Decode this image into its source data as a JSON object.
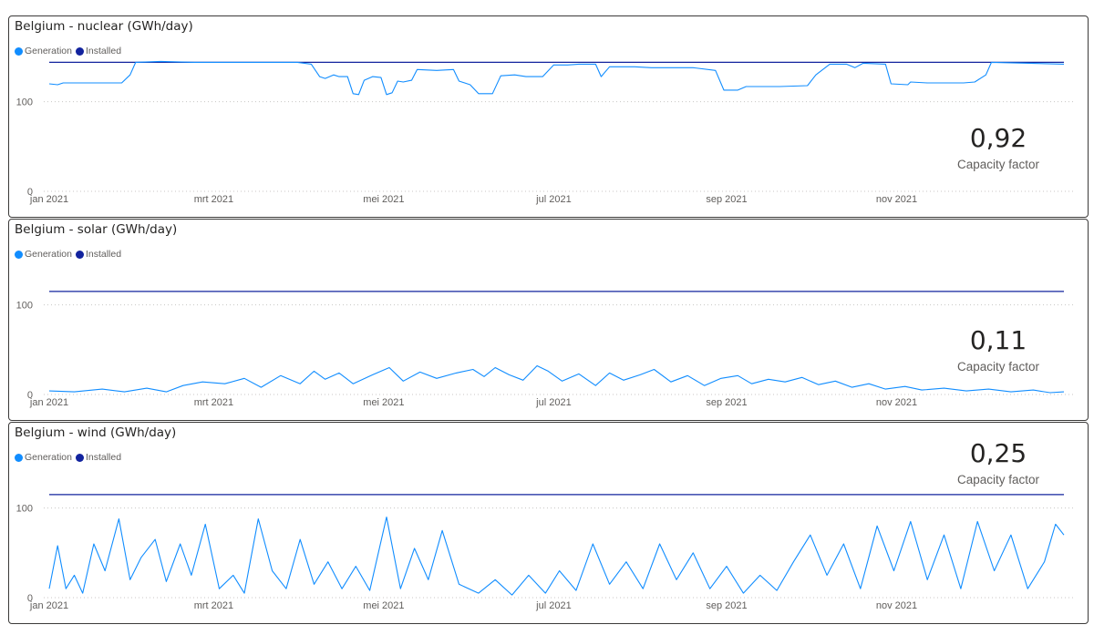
{
  "panels": [
    {
      "title": "Belgium - nuclear (GWh/day)",
      "legend": [
        "Generation",
        "Installed"
      ],
      "kpi_value": "0,92",
      "kpi_label": "Capacity factor"
    },
    {
      "title": "Belgium - solar (GWh/day)",
      "legend": [
        "Generation",
        "Installed"
      ],
      "kpi_value": "0,11",
      "kpi_label": "Capacity factor"
    },
    {
      "title": "Belgium - wind (GWh/day)",
      "legend": [
        "Generation",
        "Installed"
      ],
      "kpi_value": "0,25",
      "kpi_label": "Capacity factor"
    }
  ],
  "colors": {
    "generation": "#118dff",
    "installed": "#12239e",
    "grid": "#c8c6c4",
    "border": "#3b3a39"
  },
  "chart_data": [
    {
      "type": "line",
      "title": "Belgium - nuclear (GWh/day)",
      "x_ticks": [
        "jan 2021",
        "mrt 2021",
        "mei 2021",
        "jul 2021",
        "sep 2021",
        "nov 2021"
      ],
      "y_ticks": [
        "0",
        "100"
      ],
      "ylim": [
        0,
        180
      ],
      "x_range": [
        "2021-01-01",
        "2021-12-31"
      ],
      "grid": true,
      "legend_position": "top-left",
      "series": [
        {
          "name": "Installed",
          "points": [
            [
              "2021-01-01",
              144
            ],
            [
              "2021-12-31",
              144
            ]
          ]
        },
        {
          "name": "Generation",
          "points": [
            [
              "2021-01-01",
              120
            ],
            [
              "2021-01-04",
              119
            ],
            [
              "2021-01-06",
              121
            ],
            [
              "2021-01-27",
              121
            ],
            [
              "2021-01-30",
              130
            ],
            [
              "2021-02-01",
              144
            ],
            [
              "2021-02-10",
              145
            ],
            [
              "2021-02-22",
              144
            ],
            [
              "2021-03-10",
              144
            ],
            [
              "2021-03-31",
              144
            ],
            [
              "2021-04-05",
              142
            ],
            [
              "2021-04-08",
              128
            ],
            [
              "2021-04-10",
              126
            ],
            [
              "2021-04-13",
              130
            ],
            [
              "2021-04-15",
              128
            ],
            [
              "2021-04-18",
              128
            ],
            [
              "2021-04-20",
              109
            ],
            [
              "2021-04-22",
              108
            ],
            [
              "2021-04-24",
              124
            ],
            [
              "2021-04-27",
              128
            ],
            [
              "2021-04-30",
              127
            ],
            [
              "2021-05-02",
              108
            ],
            [
              "2021-05-04",
              110
            ],
            [
              "2021-05-06",
              123
            ],
            [
              "2021-05-08",
              122
            ],
            [
              "2021-05-11",
              124
            ],
            [
              "2021-05-13",
              136
            ],
            [
              "2021-05-20",
              135
            ],
            [
              "2021-05-26",
              136
            ],
            [
              "2021-05-28",
              123
            ],
            [
              "2021-06-01",
              119
            ],
            [
              "2021-06-04",
              109
            ],
            [
              "2021-06-09",
              109
            ],
            [
              "2021-06-12",
              129
            ],
            [
              "2021-06-17",
              130
            ],
            [
              "2021-06-21",
              128
            ],
            [
              "2021-06-27",
              128
            ],
            [
              "2021-07-01",
              141
            ],
            [
              "2021-07-06",
              141
            ],
            [
              "2021-07-10",
              142
            ],
            [
              "2021-07-16",
              142
            ],
            [
              "2021-07-18",
              128
            ],
            [
              "2021-07-21",
              139
            ],
            [
              "2021-07-30",
              139
            ],
            [
              "2021-08-05",
              138
            ],
            [
              "2021-08-15",
              138
            ],
            [
              "2021-08-20",
              138
            ],
            [
              "2021-08-28",
              135
            ],
            [
              "2021-08-31",
              113
            ],
            [
              "2021-09-05",
              113
            ],
            [
              "2021-09-08",
              117
            ],
            [
              "2021-09-20",
              117
            ],
            [
              "2021-09-30",
              118
            ],
            [
              "2021-10-03",
              130
            ],
            [
              "2021-10-08",
              142
            ],
            [
              "2021-10-14",
              142
            ],
            [
              "2021-10-17",
              138
            ],
            [
              "2021-10-20",
              143
            ],
            [
              "2021-10-28",
              142
            ],
            [
              "2021-10-30",
              120
            ],
            [
              "2021-11-05",
              119
            ],
            [
              "2021-11-06",
              122
            ],
            [
              "2021-11-12",
              121
            ],
            [
              "2021-11-25",
              121
            ],
            [
              "2021-11-29",
              122
            ],
            [
              "2021-12-03",
              130
            ],
            [
              "2021-12-05",
              144
            ],
            [
              "2021-12-31",
              142
            ]
          ]
        }
      ]
    },
    {
      "type": "line",
      "title": "Belgium - solar (GWh/day)",
      "x_ticks": [
        "jan 2021",
        "mrt 2021",
        "mei 2021",
        "jul 2021",
        "sep 2021",
        "nov 2021"
      ],
      "y_ticks": [
        "0",
        "100"
      ],
      "ylim": [
        0,
        180
      ],
      "x_range": [
        "2021-01-01",
        "2021-12-31"
      ],
      "grid": true,
      "legend_position": "top-left",
      "series": [
        {
          "name": "Installed",
          "points": [
            [
              "2021-01-01",
              115
            ],
            [
              "2021-12-31",
              115
            ]
          ]
        },
        {
          "name": "Generation",
          "points": [
            [
              "2021-01-01",
              4
            ],
            [
              "2021-01-10",
              3
            ],
            [
              "2021-01-20",
              6
            ],
            [
              "2021-01-28",
              3
            ],
            [
              "2021-02-05",
              7
            ],
            [
              "2021-02-12",
              3
            ],
            [
              "2021-02-18",
              10
            ],
            [
              "2021-02-25",
              14
            ],
            [
              "2021-03-05",
              12
            ],
            [
              "2021-03-12",
              18
            ],
            [
              "2021-03-18",
              8
            ],
            [
              "2021-03-25",
              21
            ],
            [
              "2021-04-01",
              12
            ],
            [
              "2021-04-06",
              26
            ],
            [
              "2021-04-10",
              17
            ],
            [
              "2021-04-15",
              24
            ],
            [
              "2021-04-20",
              12
            ],
            [
              "2021-04-27",
              22
            ],
            [
              "2021-05-03",
              30
            ],
            [
              "2021-05-08",
              15
            ],
            [
              "2021-05-14",
              25
            ],
            [
              "2021-05-20",
              18
            ],
            [
              "2021-05-27",
              24
            ],
            [
              "2021-06-02",
              28
            ],
            [
              "2021-06-06",
              20
            ],
            [
              "2021-06-10",
              30
            ],
            [
              "2021-06-15",
              22
            ],
            [
              "2021-06-20",
              16
            ],
            [
              "2021-06-25",
              32
            ],
            [
              "2021-06-29",
              26
            ],
            [
              "2021-07-04",
              15
            ],
            [
              "2021-07-10",
              23
            ],
            [
              "2021-07-16",
              10
            ],
            [
              "2021-07-21",
              24
            ],
            [
              "2021-07-26",
              16
            ],
            [
              "2021-08-01",
              22
            ],
            [
              "2021-08-06",
              28
            ],
            [
              "2021-08-12",
              14
            ],
            [
              "2021-08-18",
              21
            ],
            [
              "2021-08-24",
              10
            ],
            [
              "2021-08-30",
              18
            ],
            [
              "2021-09-05",
              21
            ],
            [
              "2021-09-10",
              12
            ],
            [
              "2021-09-16",
              17
            ],
            [
              "2021-09-22",
              14
            ],
            [
              "2021-09-28",
              19
            ],
            [
              "2021-10-04",
              11
            ],
            [
              "2021-10-10",
              15
            ],
            [
              "2021-10-16",
              8
            ],
            [
              "2021-10-22",
              12
            ],
            [
              "2021-10-28",
              6
            ],
            [
              "2021-11-04",
              9
            ],
            [
              "2021-11-10",
              5
            ],
            [
              "2021-11-18",
              7
            ],
            [
              "2021-11-26",
              4
            ],
            [
              "2021-12-04",
              6
            ],
            [
              "2021-12-12",
              3
            ],
            [
              "2021-12-20",
              5
            ],
            [
              "2021-12-26",
              2
            ],
            [
              "2021-12-31",
              3
            ]
          ]
        }
      ]
    },
    {
      "type": "line",
      "title": "Belgium - wind (GWh/day)",
      "x_ticks": [
        "jan 2021",
        "mrt 2021",
        "mei 2021",
        "jul 2021",
        "sep 2021",
        "nov 2021"
      ],
      "y_ticks": [
        "0",
        "100"
      ],
      "ylim": [
        0,
        180
      ],
      "x_range": [
        "2021-01-01",
        "2021-12-31"
      ],
      "grid": true,
      "legend_position": "top-left",
      "series": [
        {
          "name": "Installed",
          "points": [
            [
              "2021-01-01",
              115
            ],
            [
              "2021-12-31",
              115
            ]
          ]
        },
        {
          "name": "Generation",
          "points": [
            [
              "2021-01-01",
              10
            ],
            [
              "2021-01-04",
              58
            ],
            [
              "2021-01-07",
              10
            ],
            [
              "2021-01-10",
              25
            ],
            [
              "2021-01-13",
              5
            ],
            [
              "2021-01-17",
              60
            ],
            [
              "2021-01-21",
              30
            ],
            [
              "2021-01-26",
              88
            ],
            [
              "2021-01-30",
              20
            ],
            [
              "2021-02-03",
              45
            ],
            [
              "2021-02-08",
              65
            ],
            [
              "2021-02-12",
              18
            ],
            [
              "2021-02-17",
              60
            ],
            [
              "2021-02-21",
              25
            ],
            [
              "2021-02-26",
              82
            ],
            [
              "2021-03-03",
              10
            ],
            [
              "2021-03-08",
              25
            ],
            [
              "2021-03-12",
              5
            ],
            [
              "2021-03-17",
              88
            ],
            [
              "2021-03-22",
              30
            ],
            [
              "2021-03-27",
              10
            ],
            [
              "2021-04-01",
              65
            ],
            [
              "2021-04-06",
              15
            ],
            [
              "2021-04-11",
              40
            ],
            [
              "2021-04-16",
              10
            ],
            [
              "2021-04-21",
              35
            ],
            [
              "2021-04-26",
              8
            ],
            [
              "2021-05-02",
              90
            ],
            [
              "2021-05-07",
              10
            ],
            [
              "2021-05-12",
              55
            ],
            [
              "2021-05-17",
              20
            ],
            [
              "2021-05-22",
              75
            ],
            [
              "2021-05-28",
              15
            ],
            [
              "2021-06-04",
              5
            ],
            [
              "2021-06-10",
              20
            ],
            [
              "2021-06-16",
              3
            ],
            [
              "2021-06-22",
              25
            ],
            [
              "2021-06-28",
              5
            ],
            [
              "2021-07-03",
              30
            ],
            [
              "2021-07-09",
              8
            ],
            [
              "2021-07-15",
              60
            ],
            [
              "2021-07-21",
              15
            ],
            [
              "2021-07-27",
              40
            ],
            [
              "2021-08-02",
              10
            ],
            [
              "2021-08-08",
              60
            ],
            [
              "2021-08-14",
              20
            ],
            [
              "2021-08-20",
              50
            ],
            [
              "2021-08-26",
              10
            ],
            [
              "2021-09-01",
              35
            ],
            [
              "2021-09-07",
              5
            ],
            [
              "2021-09-13",
              25
            ],
            [
              "2021-09-19",
              8
            ],
            [
              "2021-09-25",
              40
            ],
            [
              "2021-10-01",
              70
            ],
            [
              "2021-10-07",
              25
            ],
            [
              "2021-10-13",
              60
            ],
            [
              "2021-10-19",
              10
            ],
            [
              "2021-10-25",
              80
            ],
            [
              "2021-10-31",
              30
            ],
            [
              "2021-11-06",
              85
            ],
            [
              "2021-11-12",
              20
            ],
            [
              "2021-11-18",
              70
            ],
            [
              "2021-11-24",
              10
            ],
            [
              "2021-11-30",
              85
            ],
            [
              "2021-12-06",
              30
            ],
            [
              "2021-12-12",
              70
            ],
            [
              "2021-12-18",
              10
            ],
            [
              "2021-12-24",
              40
            ],
            [
              "2021-12-28",
              82
            ],
            [
              "2021-12-31",
              70
            ]
          ]
        }
      ]
    }
  ]
}
